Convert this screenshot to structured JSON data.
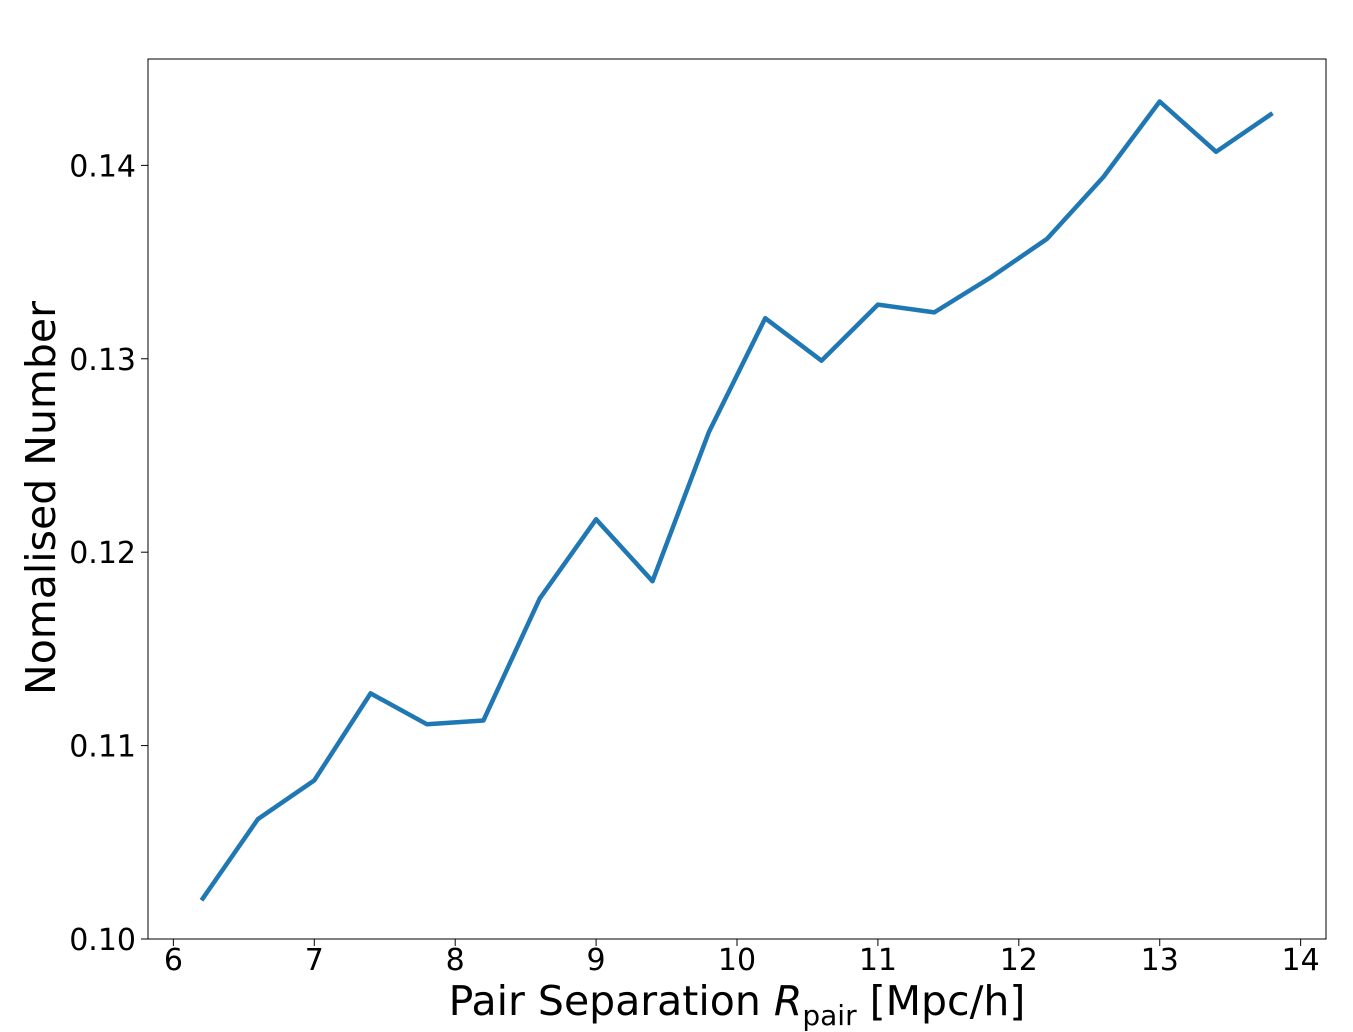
{
  "chart_data": {
    "type": "line",
    "xlabel": {
      "prefix": "Pair Separation ",
      "symbol": "R",
      "subscript": "pair",
      "suffix": " [Mpc/h]"
    },
    "ylabel": "Nomalised Number",
    "xlim": [
      5.82,
      14.18
    ],
    "ylim": [
      0.1,
      0.1455
    ],
    "xticks": [
      6,
      7,
      8,
      9,
      10,
      11,
      12,
      13,
      14
    ],
    "xtick_labels": [
      "6",
      "7",
      "8",
      "9",
      "10",
      "11",
      "12",
      "13",
      "14"
    ],
    "yticks": [
      0.1,
      0.11,
      0.12,
      0.13,
      0.14
    ],
    "ytick_labels": [
      "0.10",
      "0.11",
      "0.12",
      "0.13",
      "0.14"
    ],
    "grid": false,
    "series": [
      {
        "color": "#1f77b4",
        "x": [
          6.2,
          6.6,
          7.0,
          7.4,
          7.8,
          8.2,
          8.6,
          9.0,
          9.4,
          9.8,
          10.2,
          10.6,
          11.0,
          11.4,
          11.8,
          12.2,
          12.6,
          13.0,
          13.4,
          13.8
        ],
        "y": [
          0.102,
          0.1062,
          0.1082,
          0.1127,
          0.1111,
          0.1113,
          0.1176,
          0.1217,
          0.1185,
          0.1262,
          0.1321,
          0.1299,
          0.1328,
          0.1324,
          0.1342,
          0.1362,
          0.1394,
          0.1433,
          0.1407,
          0.1427
        ]
      }
    ]
  }
}
